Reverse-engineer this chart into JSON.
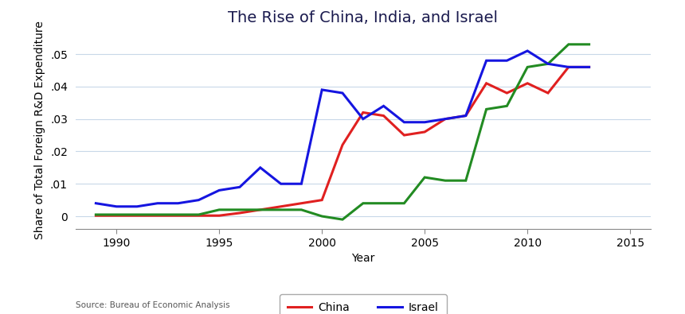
{
  "title": "The Rise of China, India, and Israel",
  "xlabel": "Year",
  "ylabel": "Share of Total Foreign R&D Expenditure",
  "source": "Source: Bureau of Economic Analysis",
  "xlim": [
    1988,
    2016
  ],
  "ylim": [
    -0.004,
    0.057
  ],
  "yticks": [
    0,
    0.01,
    0.02,
    0.03,
    0.04,
    0.05
  ],
  "xticks": [
    1990,
    1995,
    2000,
    2005,
    2010,
    2015
  ],
  "china": {
    "years": [
      1989,
      1990,
      1991,
      1992,
      1993,
      1994,
      1995,
      1996,
      1997,
      1998,
      1999,
      2000,
      2001,
      2002,
      2003,
      2004,
      2005,
      2006,
      2007,
      2008,
      2009,
      2010,
      2011,
      2012,
      2013
    ],
    "values": [
      0.0002,
      0.0002,
      0.0002,
      0.0002,
      0.0002,
      0.0002,
      0.0002,
      0.001,
      0.002,
      0.003,
      0.004,
      0.005,
      0.022,
      0.032,
      0.031,
      0.025,
      0.026,
      0.03,
      0.031,
      0.041,
      0.038,
      0.041,
      0.038,
      0.046,
      0.046
    ],
    "color": "#e02020"
  },
  "india": {
    "years": [
      1989,
      1990,
      1991,
      1992,
      1993,
      1994,
      1995,
      1996,
      1997,
      1998,
      1999,
      2000,
      2001,
      2002,
      2003,
      2004,
      2005,
      2006,
      2007,
      2008,
      2009,
      2010,
      2011,
      2012,
      2013
    ],
    "values": [
      0.0005,
      0.0005,
      0.0005,
      0.0005,
      0.0005,
      0.0005,
      0.002,
      0.002,
      0.002,
      0.002,
      0.002,
      0.0,
      -0.001,
      0.004,
      0.004,
      0.004,
      0.012,
      0.011,
      0.011,
      0.033,
      0.034,
      0.046,
      0.047,
      0.053,
      0.053
    ],
    "color": "#228B22"
  },
  "israel": {
    "years": [
      1989,
      1990,
      1991,
      1992,
      1993,
      1994,
      1995,
      1996,
      1997,
      1998,
      1999,
      2000,
      2001,
      2002,
      2003,
      2004,
      2005,
      2006,
      2007,
      2008,
      2009,
      2010,
      2011,
      2012,
      2013
    ],
    "values": [
      0.004,
      0.003,
      0.003,
      0.004,
      0.004,
      0.005,
      0.008,
      0.009,
      0.015,
      0.01,
      0.01,
      0.039,
      0.038,
      0.03,
      0.034,
      0.029,
      0.029,
      0.03,
      0.031,
      0.048,
      0.048,
      0.051,
      0.047,
      0.046,
      0.046
    ],
    "color": "#1515e0"
  },
  "title_color": "#1a1a4e",
  "title_fontsize": 14,
  "label_fontsize": 10,
  "tick_fontsize": 10,
  "line_width": 2.2,
  "legend_fontsize": 10,
  "background_color": "#ffffff",
  "grid_color": "#c8d8e8",
  "source_fontsize": 7.5
}
